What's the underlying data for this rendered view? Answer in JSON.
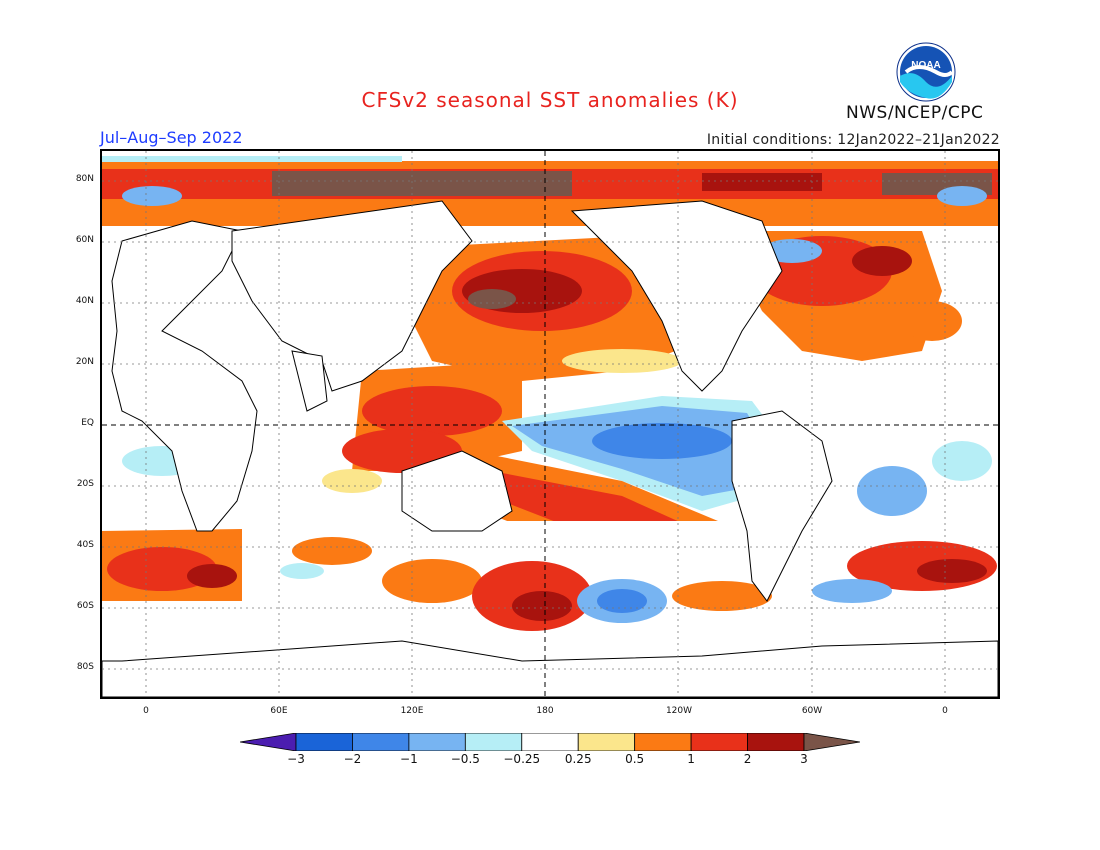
{
  "header": {
    "title": "CFSv2 seasonal SST anomalies (K)",
    "season": "Jul–Aug–Sep 2022",
    "initial_conditions": "Initial conditions: 12Jan2022–21Jan2022",
    "agency": "NWS/NCEP/CPC",
    "logo_text": "NOAA"
  },
  "map": {
    "lat_labels": [
      "80N",
      "60N",
      "40N",
      "20N",
      "EQ",
      "20S",
      "40S",
      "60S",
      "80S"
    ],
    "lon_labels": [
      "0",
      "60E",
      "120E",
      "180",
      "120W",
      "60W",
      "0"
    ],
    "lat_range": [
      -90,
      90
    ],
    "lon_range": [
      -20,
      380
    ],
    "reference_lines": [
      "Equator",
      "Dateline 180"
    ]
  },
  "colorbar": {
    "labels": [
      "−3",
      "−2",
      "−1",
      "−0.5",
      "−0.25",
      "0.25",
      "0.5",
      "1",
      "2",
      "3"
    ],
    "colors": [
      "#4b1db0",
      "#1a64d8",
      "#3f86e8",
      "#77b4f2",
      "#b6eef6",
      "#ffffff",
      "#fbe68c",
      "#fb7a14",
      "#e8311a",
      "#a8130e",
      "#7a5448"
    ]
  },
  "colors": {
    "title": "#e8231f",
    "season": "#1e3cff",
    "land": "#ffffff",
    "coast": "#000000"
  }
}
